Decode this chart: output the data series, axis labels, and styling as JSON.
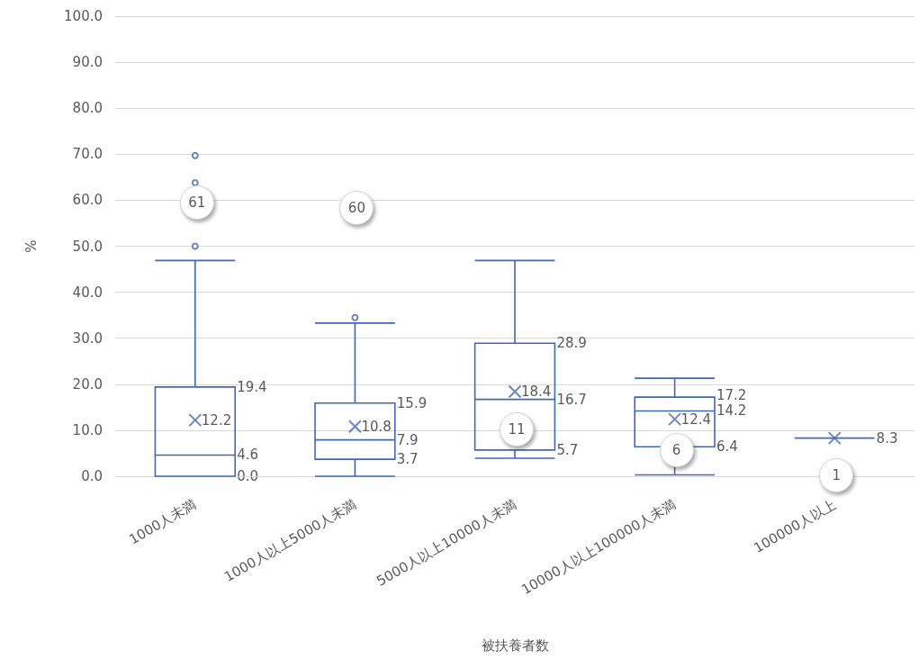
{
  "chart_data": {
    "type": "box",
    "xlabel": "被扶養者数",
    "ylabel": "%",
    "categories": [
      "1000人未満",
      "1000人以上5000人未満",
      "5000人以上10000人未満",
      "10000人以上100000人未満",
      "100000人以上"
    ],
    "series": [
      {
        "color": "#4468b0",
        "boxes": [
          {
            "low": 0.0,
            "q1": 0.0,
            "median": 4.6,
            "q3": 19.4,
            "high": 46.9,
            "mean": 12.2,
            "outliers": [
              69.7,
              63.8,
              50.0
            ]
          },
          {
            "low": 0.0,
            "q1": 3.7,
            "median": 7.9,
            "q3": 15.9,
            "high": 33.3,
            "mean": 10.8,
            "outliers": [
              34.5
            ]
          },
          {
            "low": 3.9,
            "q1": 5.7,
            "median": 16.7,
            "q3": 28.9,
            "high": 46.9,
            "mean": 18.4
          },
          {
            "low": 0.3,
            "q1": 6.4,
            "median": 14.2,
            "q3": 17.2,
            "high": 21.3,
            "mean": 12.4
          },
          {
            "low": 8.3,
            "q1": 8.3,
            "median": 8.3,
            "q3": 8.3,
            "high": 8.3,
            "mean": 8.3
          }
        ]
      }
    ],
    "ylim": [
      0,
      100
    ],
    "yticks": [
      {
        "value": 0,
        "label": "0.0"
      },
      {
        "value": 10,
        "label": "10.0"
      },
      {
        "value": 20,
        "label": "20.0"
      },
      {
        "value": 30,
        "label": "30.0"
      },
      {
        "value": 40,
        "label": "40.0"
      },
      {
        "value": 50,
        "label": "50.0"
      },
      {
        "value": 60,
        "label": "60.0"
      },
      {
        "value": 70,
        "label": "70.0"
      },
      {
        "value": 80,
        "label": "80.0"
      },
      {
        "value": 90,
        "label": "90.0"
      },
      {
        "value": 100,
        "label": "100.0"
      }
    ],
    "grid": "y",
    "marker": "cross",
    "annotations": [
      {
        "text": "61",
        "x": "1000人未満",
        "y": 59.5
      },
      {
        "text": "60",
        "x": "1000人以上5000人未満",
        "y": 58.3
      },
      {
        "text": "11",
        "x": "5000人以上10000人未満",
        "y": 10.2
      },
      {
        "text": "6",
        "x": "10000人以上100000人未満",
        "y": 5.7
      },
      {
        "text": "1",
        "x": "100000人以上",
        "y": 0.2
      },
      "19.4",
      "4.6",
      "0.0",
      "12.2",
      "15.9",
      "7.9",
      "3.7",
      "10.8",
      "28.9",
      "16.7",
      "5.7",
      "18.4",
      "17.2",
      "14.2",
      "6.4",
      "12.4",
      "8.3"
    ]
  }
}
